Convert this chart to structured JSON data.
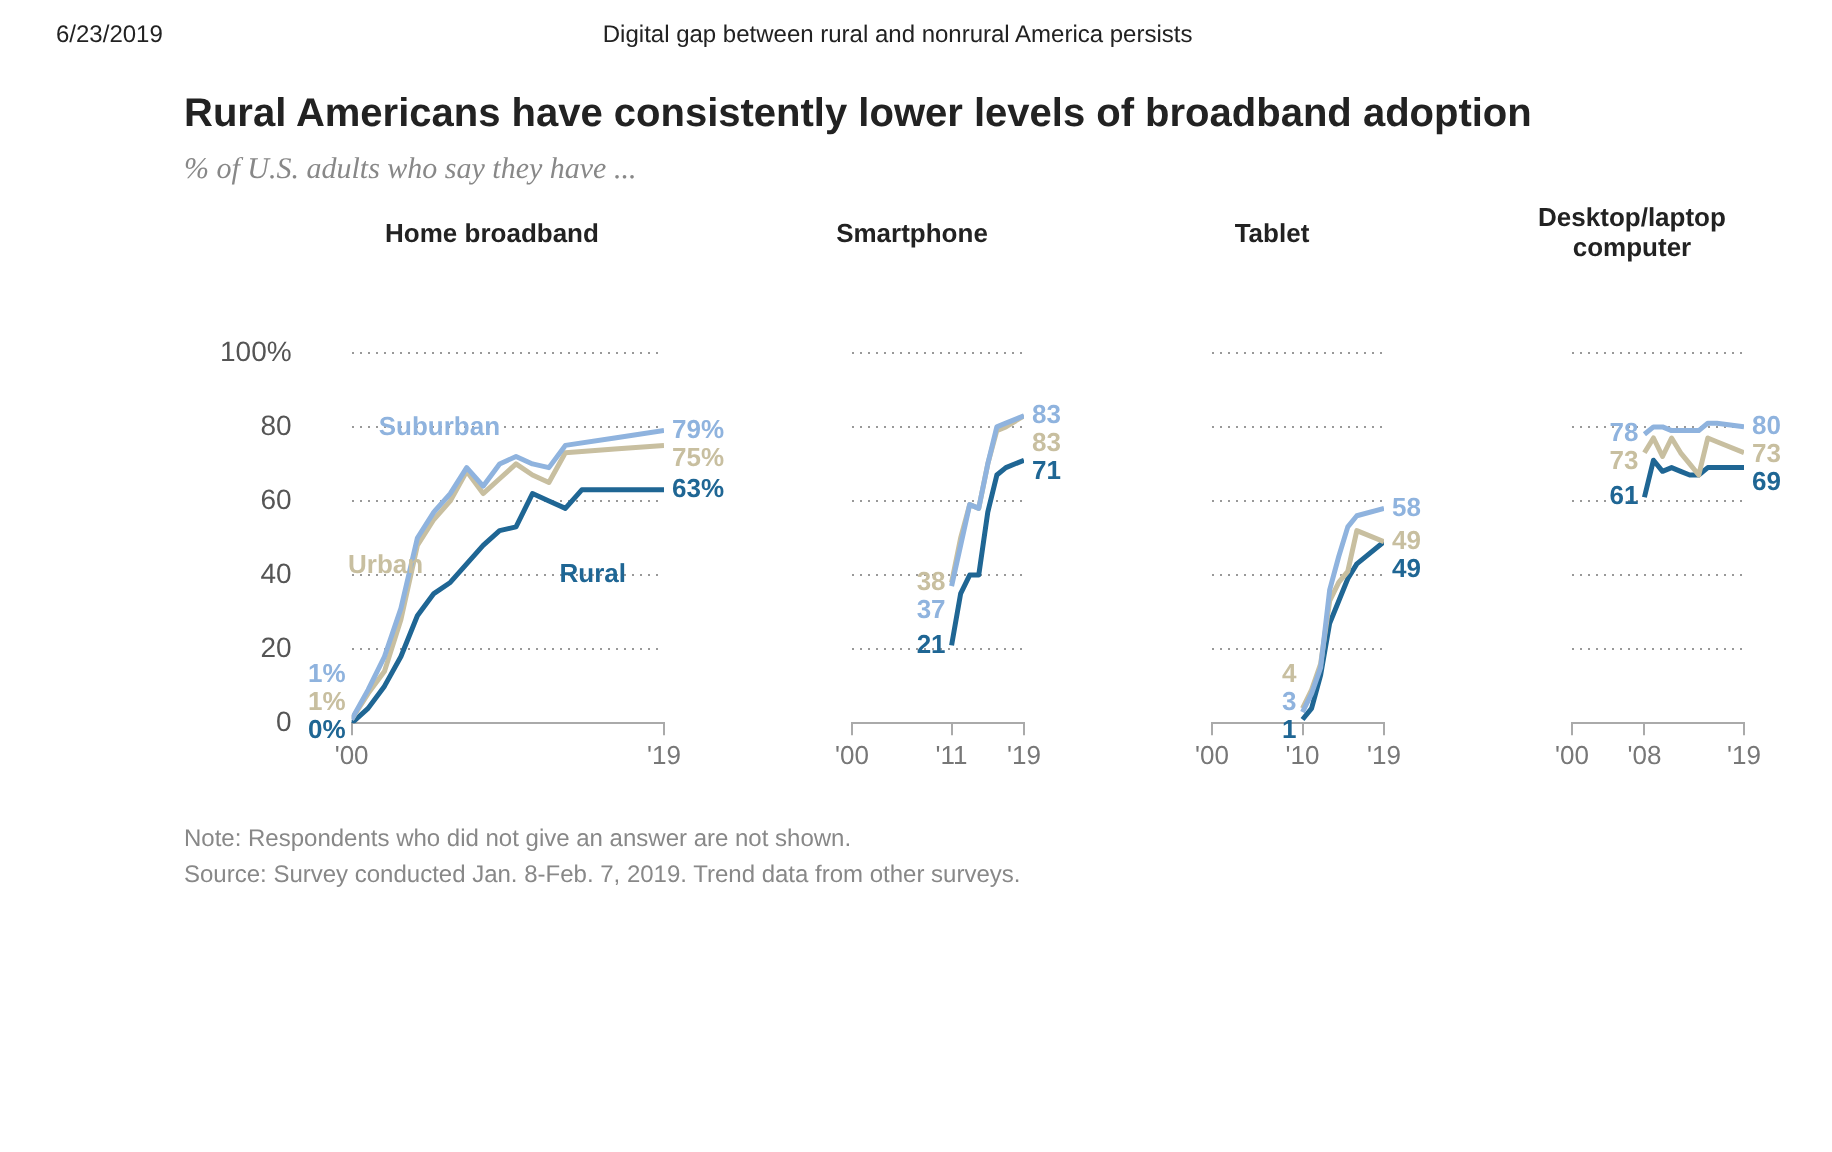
{
  "chart_data": [
    {
      "type": "line",
      "title": "Home broadband",
      "annotations": [
        "6/23/2019",
        "Digital gap between rural and nonrural America persists",
        "Rural Americans have consistently lower levels of broadband adoption",
        "% of U.S. adults who say they have ...",
        "Note: Respondents who did not give an answer are not shown.",
        "Source: Survey conducted Jan. 8-Feb. 7, 2019. Trend data from other surveys."
      ],
      "xlim": [
        2000,
        2019
      ],
      "xticks": [
        {
          "value": 2000,
          "label": "'00"
        },
        {
          "value": 2019,
          "label": "'19"
        }
      ],
      "ylim": [
        0,
        100
      ],
      "yticks": [
        0,
        20,
        40,
        60,
        80,
        {
          "value": 100,
          "label": "100%"
        }
      ],
      "grid": "y",
      "legend": false,
      "marker": "none",
      "line_style": "solid",
      "series": [
        {
          "name": "Suburban",
          "color": "#8fb3de",
          "x": [
            2000,
            2001,
            2002,
            2003,
            2004,
            2005,
            2006,
            2007,
            2008,
            2009,
            2010,
            2011,
            2012,
            2013,
            2016,
            2019
          ],
          "values": [
            1,
            9,
            18,
            31,
            50,
            57,
            62,
            69,
            64,
            70,
            72,
            70,
            69,
            75,
            77,
            79
          ],
          "value_labels": [
            "1%",
            null,
            null,
            null,
            null,
            null,
            null,
            null,
            null,
            null,
            null,
            null,
            null,
            null,
            null,
            "79%"
          ]
        },
        {
          "name": "Urban",
          "color": "#c8bfa0",
          "x": [
            2000,
            2001,
            2002,
            2003,
            2004,
            2005,
            2006,
            2007,
            2008,
            2009,
            2010,
            2011,
            2012,
            2013,
            2016,
            2019
          ],
          "values": [
            1,
            8,
            14,
            28,
            48,
            55,
            60,
            68,
            62,
            66,
            70,
            67,
            65,
            73,
            74,
            75
          ],
          "value_labels": [
            "1%",
            null,
            null,
            null,
            null,
            null,
            null,
            null,
            null,
            null,
            null,
            null,
            null,
            null,
            null,
            "75%"
          ]
        },
        {
          "name": "Rural",
          "color": "#1f6694",
          "x": [
            2000,
            2001,
            2002,
            2003,
            2004,
            2005,
            2006,
            2007,
            2008,
            2009,
            2010,
            2011,
            2012,
            2013,
            2014,
            2016,
            2019
          ],
          "values": [
            0,
            4,
            10,
            18,
            29,
            35,
            38,
            43,
            48,
            52,
            53,
            62,
            60,
            58,
            63,
            63,
            63
          ],
          "value_labels": [
            "0%",
            null,
            null,
            null,
            null,
            null,
            null,
            null,
            null,
            null,
            null,
            null,
            null,
            null,
            null,
            null,
            "63%"
          ]
        }
      ]
    },
    {
      "type": "line",
      "title": "Smartphone",
      "xlim": [
        2000,
        2019
      ],
      "xticks": [
        {
          "value": 2000,
          "label": "'00"
        },
        {
          "value": 2011,
          "label": "'11"
        },
        {
          "value": 2019,
          "label": "'19"
        }
      ],
      "ylim": [
        0,
        100
      ],
      "yticks": [
        0,
        20,
        40,
        60,
        80,
        100
      ],
      "tick_labels": "x",
      "grid": "y",
      "legend": false,
      "marker": "none",
      "line_style": "solid",
      "series": [
        {
          "color": "#8fb3de",
          "x": [
            2011,
            2012,
            2013,
            2014,
            2015,
            2016,
            2017,
            2019
          ],
          "values": [
            37,
            48,
            59,
            58,
            70,
            80,
            81,
            83
          ],
          "value_labels": [
            "37",
            null,
            null,
            null,
            null,
            null,
            null,
            "83"
          ]
        },
        {
          "color": "#c8bfa0",
          "x": [
            2011,
            2012,
            2013,
            2014,
            2015,
            2016,
            2017,
            2019
          ],
          "values": [
            38,
            50,
            59,
            58,
            70,
            79,
            80,
            83
          ],
          "value_labels": [
            "38",
            null,
            null,
            null,
            null,
            null,
            null,
            "83"
          ]
        },
        {
          "color": "#1f6694",
          "x": [
            2011,
            2012,
            2013,
            2014,
            2015,
            2016,
            2017,
            2019
          ],
          "values": [
            21,
            35,
            40,
            40,
            57,
            67,
            69,
            71
          ],
          "value_labels": [
            "21",
            null,
            null,
            null,
            null,
            null,
            null,
            "71"
          ]
        }
      ]
    },
    {
      "type": "line",
      "title": "Tablet",
      "xlim": [
        2000,
        2019
      ],
      "xticks": [
        {
          "value": 2000,
          "label": "'00"
        },
        {
          "value": 2010,
          "label": "'10"
        },
        {
          "value": 2019,
          "label": "'19"
        }
      ],
      "ylim": [
        0,
        100
      ],
      "yticks": [
        0,
        20,
        40,
        60,
        80,
        100
      ],
      "tick_labels": "x",
      "grid": "y",
      "legend": false,
      "marker": "none",
      "line_style": "solid",
      "series": [
        {
          "color": "#8fb3de",
          "x": [
            2010,
            2011,
            2012,
            2013,
            2014,
            2015,
            2016,
            2019
          ],
          "values": [
            3,
            8,
            15,
            36,
            45,
            53,
            56,
            58
          ],
          "value_labels": [
            "3",
            null,
            null,
            null,
            null,
            null,
            null,
            "58"
          ]
        },
        {
          "color": "#c8bfa0",
          "x": [
            2010,
            2011,
            2012,
            2013,
            2014,
            2015,
            2016,
            2019
          ],
          "values": [
            4,
            9,
            16,
            33,
            38,
            41,
            52,
            49
          ],
          "value_labels": [
            "4",
            null,
            null,
            null,
            null,
            null,
            null,
            "49"
          ]
        },
        {
          "color": "#1f6694",
          "x": [
            2010,
            2011,
            2012,
            2013,
            2014,
            2015,
            2016,
            2019
          ],
          "values": [
            1,
            4,
            13,
            27,
            33,
            39,
            43,
            49
          ],
          "value_labels": [
            "1",
            null,
            null,
            null,
            null,
            null,
            null,
            "49"
          ]
        }
      ]
    },
    {
      "type": "line",
      "title": "Desktop/laptop computer",
      "xlim": [
        2000,
        2019
      ],
      "xticks": [
        {
          "value": 2000,
          "label": "'00"
        },
        {
          "value": 2008,
          "label": "'08"
        },
        {
          "value": 2019,
          "label": "'19"
        }
      ],
      "ylim": [
        0,
        100
      ],
      "yticks": [
        0,
        20,
        40,
        60,
        80,
        100
      ],
      "tick_labels": "x",
      "grid": "y",
      "legend": false,
      "marker": "none",
      "line_style": "solid",
      "series": [
        {
          "color": "#8fb3de",
          "x": [
            2008,
            2009,
            2010,
            2011,
            2012,
            2013,
            2014,
            2015,
            2016,
            2019
          ],
          "values": [
            78,
            80,
            80,
            79,
            79,
            79,
            79,
            81,
            81,
            80
          ],
          "value_labels": [
            "78",
            null,
            null,
            null,
            null,
            null,
            null,
            null,
            null,
            "80"
          ]
        },
        {
          "color": "#c8bfa0",
          "x": [
            2008,
            2009,
            2010,
            2011,
            2012,
            2013,
            2014,
            2015,
            2016,
            2019
          ],
          "values": [
            73,
            77,
            72,
            77,
            73,
            70,
            67,
            77,
            76,
            73
          ],
          "value_labels": [
            "73",
            null,
            null,
            null,
            null,
            null,
            null,
            null,
            null,
            "73"
          ]
        },
        {
          "color": "#1f6694",
          "x": [
            2008,
            2009,
            2010,
            2011,
            2012,
            2013,
            2014,
            2015,
            2016,
            2019
          ],
          "values": [
            61,
            71,
            68,
            69,
            68,
            67,
            67,
            69,
            69,
            69
          ],
          "value_labels": [
            "61",
            null,
            null,
            null,
            null,
            null,
            null,
            null,
            null,
            "69"
          ]
        }
      ]
    }
  ]
}
